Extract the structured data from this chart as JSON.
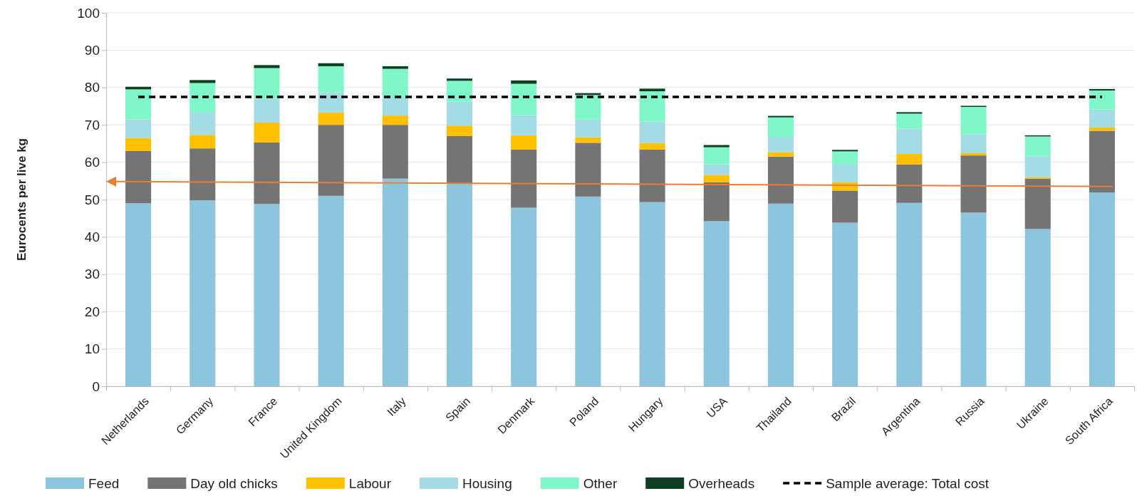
{
  "chart_data": {
    "type": "bar",
    "stacked": true,
    "ylabel": "Eurocents per live kg",
    "categories": [
      "Netherlands",
      "Germany",
      "France",
      "United Kingdom",
      "Italy",
      "Spain",
      "Denmark",
      "Poland",
      "Hungary",
      "USA",
      "Thailand",
      "Brazil",
      "Argentina",
      "Russia",
      "Ukraine",
      "South Africa"
    ],
    "series": [
      {
        "name": "Feed",
        "color": "#8dc5df",
        "values": [
          49,
          49.8,
          48.8,
          51,
          55.6,
          54.2,
          47.8,
          50.8,
          49.3,
          44.2,
          48.9,
          43.8,
          49.1,
          46.5,
          42.1,
          51.9
        ]
      },
      {
        "name": "Day old chicks",
        "color": "#747474",
        "values": [
          14,
          13.9,
          16.5,
          19,
          14.4,
          12.8,
          15.6,
          14.4,
          14.1,
          10.4,
          12.6,
          8.6,
          10.3,
          15.3,
          13.5,
          16.5
        ]
      },
      {
        "name": "Labour",
        "color": "#ffc000",
        "values": [
          3.5,
          3.6,
          5.3,
          3.3,
          2.5,
          2.8,
          3.8,
          1.5,
          1.7,
          2,
          1.2,
          2.2,
          2.8,
          0.6,
          0.4,
          0.9
        ]
      },
      {
        "name": "Housing",
        "color": "#a3dce4",
        "values": [
          5,
          6,
          6.4,
          5.4,
          5,
          6.4,
          5.4,
          4.7,
          5.8,
          2.8,
          4.1,
          4.9,
          6.8,
          5.1,
          5.6,
          4.8
        ]
      },
      {
        "name": "Other",
        "color": "#80f7c9",
        "values": [
          8,
          7.9,
          8.2,
          7,
          7.5,
          5.6,
          8.4,
          6.6,
          8.1,
          4.6,
          5.2,
          3.4,
          4,
          7.3,
          5.3,
          5.1
        ]
      },
      {
        "name": "Overheads",
        "color": "#0c4020",
        "values": [
          0.7,
          0.8,
          0.8,
          0.8,
          0.7,
          0.6,
          0.9,
          0.5,
          0.7,
          0.6,
          0.4,
          0.4,
          0.4,
          0.3,
          0.3,
          0.4
        ]
      }
    ],
    "ylim": [
      0,
      100
    ],
    "yticks": [
      0,
      10,
      20,
      30,
      40,
      50,
      60,
      70,
      80,
      90,
      100
    ],
    "grid": "y",
    "legend": "bottom",
    "ref_lines": [
      {
        "axis": "y",
        "value": 77.5,
        "label": "Sample average: Total cost",
        "color": "#000000",
        "line_style": "dashed"
      }
    ]
  }
}
